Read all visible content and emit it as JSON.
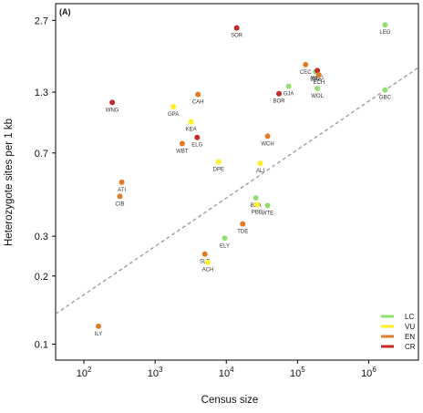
{
  "chart_data": {
    "type": "scatter",
    "panel_label": "(A)",
    "xlabel": "Census size",
    "ylabel": "Heterozygote sites per 1 kb",
    "x_scale": "log",
    "y_scale": "log",
    "xlim": [
      40,
      5000000
    ],
    "ylim": [
      0.085,
      3.2
    ],
    "x_ticks": [
      {
        "value": 100,
        "base": "10",
        "exp": "2"
      },
      {
        "value": 1000,
        "base": "10",
        "exp": "3"
      },
      {
        "value": 10000,
        "base": "10",
        "exp": "4"
      },
      {
        "value": 100000,
        "base": "10",
        "exp": "5"
      },
      {
        "value": 1000000,
        "base": "10",
        "exp": "6"
      }
    ],
    "y_ticks": [
      {
        "value": 0.1,
        "label": "0.1"
      },
      {
        "value": 0.2,
        "label": "0.2"
      },
      {
        "value": 0.3,
        "label": "0.3"
      },
      {
        "value": 0.7,
        "label": "0.7"
      },
      {
        "value": 1.3,
        "label": "1.3"
      },
      {
        "value": 2.7,
        "label": "2.7"
      }
    ],
    "colors": {
      "LC": "#90e070",
      "VU": "#ffee22",
      "EN": "#e07b28",
      "CR": "#c42a2a"
    },
    "legend": {
      "position": "bottom-right",
      "items": [
        {
          "key": "LC",
          "label": "LC"
        },
        {
          "key": "VU",
          "label": "VU"
        },
        {
          "key": "EN",
          "label": "EN"
        },
        {
          "key": "CR",
          "label": "CR"
        }
      ]
    },
    "trend_line": {
      "style": "dashed",
      "color": "#999999",
      "points": [
        [
          40,
          0.136
        ],
        [
          5000000,
          1.67
        ]
      ]
    },
    "points": [
      {
        "label": "LEG",
        "x": 1700000,
        "y": 2.58,
        "status": "LC"
      },
      {
        "label": "SOR",
        "x": 14000,
        "y": 2.5,
        "status": "CR"
      },
      {
        "label": "CEC",
        "x": 130000,
        "y": 1.72,
        "status": "EN"
      },
      {
        "label": "BBE",
        "x": 180000,
        "y": 1.6,
        "status": "LC"
      },
      {
        "label": "WLG",
        "x": 190000,
        "y": 1.62,
        "status": "CR"
      },
      {
        "label": "ECH",
        "x": 200000,
        "y": 1.55,
        "status": "EN"
      },
      {
        "label": "GJA",
        "x": 75000,
        "y": 1.38,
        "status": "LC"
      },
      {
        "label": "BOR",
        "x": 55000,
        "y": 1.28,
        "status": "CR"
      },
      {
        "label": "WOL",
        "x": 190000,
        "y": 1.35,
        "status": "LC"
      },
      {
        "label": "GBC",
        "x": 1700000,
        "y": 1.33,
        "status": "LC"
      },
      {
        "label": "CAH",
        "x": 4000,
        "y": 1.27,
        "status": "EN"
      },
      {
        "label": "WNG",
        "x": 250,
        "y": 1.17,
        "status": "CR"
      },
      {
        "label": "GPA",
        "x": 1800,
        "y": 1.12,
        "status": "VU"
      },
      {
        "label": "KEA",
        "x": 3200,
        "y": 0.96,
        "status": "VU"
      },
      {
        "label": "ELG",
        "x": 3900,
        "y": 0.82,
        "status": "CR"
      },
      {
        "label": "WCH",
        "x": 38000,
        "y": 0.83,
        "status": "EN"
      },
      {
        "label": "WBT",
        "x": 2400,
        "y": 0.77,
        "status": "EN"
      },
      {
        "label": "DPE",
        "x": 7800,
        "y": 0.64,
        "status": "VU"
      },
      {
        "label": "ALI",
        "x": 30000,
        "y": 0.63,
        "status": "VU"
      },
      {
        "label": "ATI",
        "x": 340,
        "y": 0.52,
        "status": "EN"
      },
      {
        "label": "CIB",
        "x": 320,
        "y": 0.45,
        "status": "EN"
      },
      {
        "label": "BEA",
        "x": 26000,
        "y": 0.443,
        "status": "LC"
      },
      {
        "label": "PBE",
        "x": 27000,
        "y": 0.413,
        "status": "VU"
      },
      {
        "label": "WTE",
        "x": 38000,
        "y": 0.41,
        "status": "LC"
      },
      {
        "label": "TDE",
        "x": 17000,
        "y": 0.34,
        "status": "EN"
      },
      {
        "label": "ELY",
        "x": 9500,
        "y": 0.294,
        "status": "LC"
      },
      {
        "label": "SLE",
        "x": 5000,
        "y": 0.25,
        "status": "EN"
      },
      {
        "label": "ACH",
        "x": 5500,
        "y": 0.23,
        "status": "VU"
      },
      {
        "label": "ILY",
        "x": 160,
        "y": 0.12,
        "status": "EN"
      }
    ]
  }
}
